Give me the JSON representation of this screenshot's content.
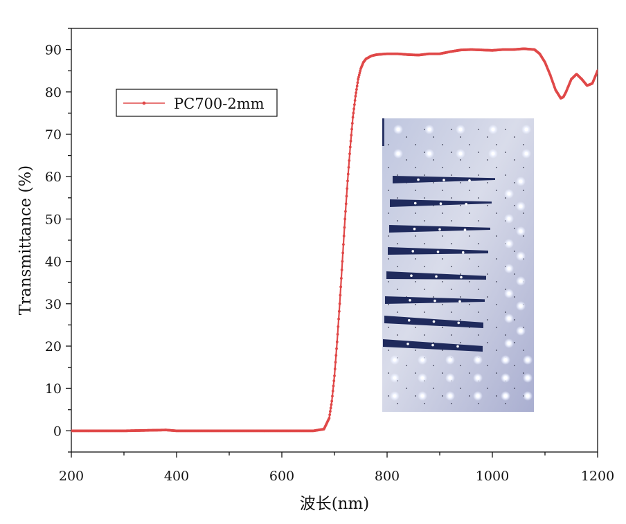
{
  "chart_data": {
    "type": "line",
    "xlabel": "波长(nm)",
    "ylabel": "Transmittance (%)",
    "xlim": [
      200,
      1200
    ],
    "ylim": [
      -5,
      95
    ],
    "x_ticks": [
      200,
      400,
      600,
      800,
      1000,
      1200
    ],
    "y_ticks": [
      0,
      10,
      20,
      30,
      40,
      50,
      60,
      70,
      80,
      90
    ],
    "grid": false,
    "legend": "top-left",
    "inset_image": "photo of LED strip panels",
    "series": [
      {
        "name": "PC700-2mm",
        "color": "#e04848",
        "x": [
          200,
          300,
          380,
          400,
          500,
          600,
          660,
          680,
          690,
          695,
          700,
          705,
          710,
          715,
          720,
          725,
          730,
          735,
          740,
          745,
          750,
          755,
          760,
          770,
          780,
          800,
          820,
          840,
          860,
          880,
          900,
          920,
          940,
          960,
          980,
          1000,
          1020,
          1040,
          1060,
          1080,
          1090,
          1100,
          1110,
          1120,
          1130,
          1135,
          1140,
          1150,
          1160,
          1170,
          1180,
          1190,
          1200
        ],
        "values": [
          0,
          0,
          0.2,
          0,
          0,
          0,
          0,
          0.4,
          3,
          7,
          13,
          21,
          30,
          40,
          50,
          59,
          67,
          74,
          79,
          83,
          85.5,
          87,
          87.8,
          88.5,
          88.8,
          89,
          89,
          88.8,
          88.7,
          89,
          89,
          89.5,
          89.9,
          90,
          89.9,
          89.8,
          90,
          90,
          90.2,
          90,
          89,
          87,
          84,
          80.5,
          78.5,
          78.8,
          80,
          83,
          84.2,
          83,
          81.5,
          82,
          85
        ]
      }
    ]
  }
}
